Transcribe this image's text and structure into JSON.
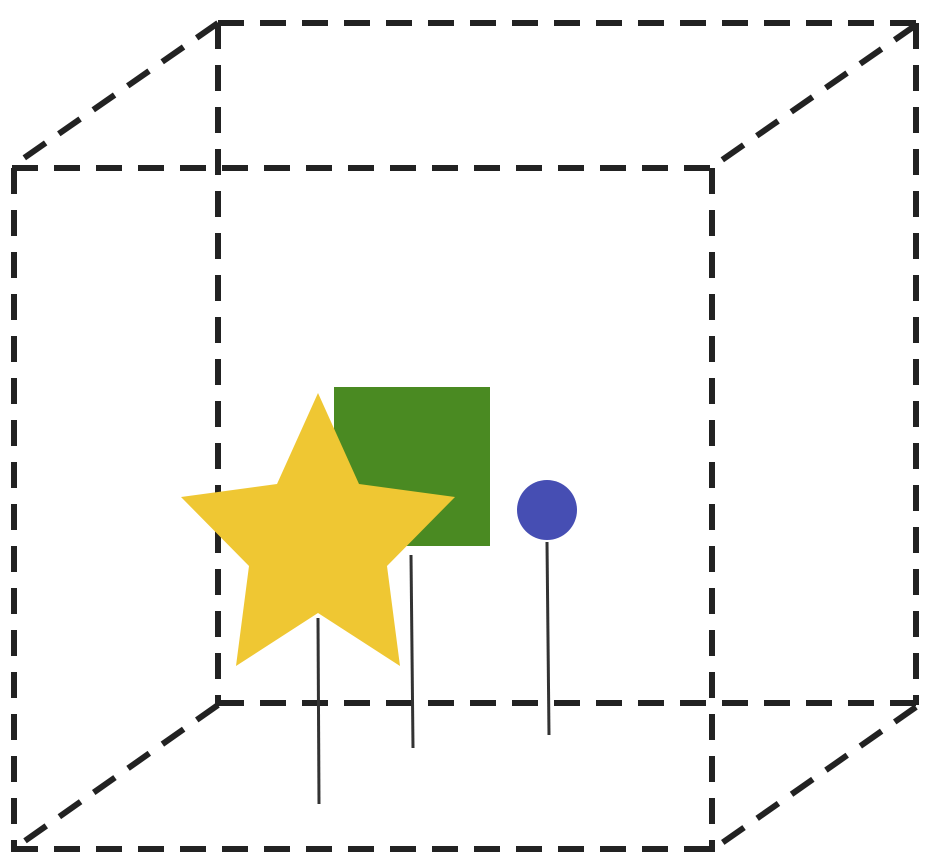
{
  "colors": {
    "cube_edge": "#222222",
    "stem": "#333333",
    "star": "#EFC733",
    "square": "#4A8A22",
    "sphere": "#464EB3",
    "background": "#FFFFFF"
  },
  "objects": [
    {
      "name": "star",
      "shape": "star",
      "color_key": "star"
    },
    {
      "name": "square",
      "shape": "square",
      "color_key": "square"
    },
    {
      "name": "sphere",
      "shape": "circle",
      "color_key": "sphere"
    }
  ]
}
